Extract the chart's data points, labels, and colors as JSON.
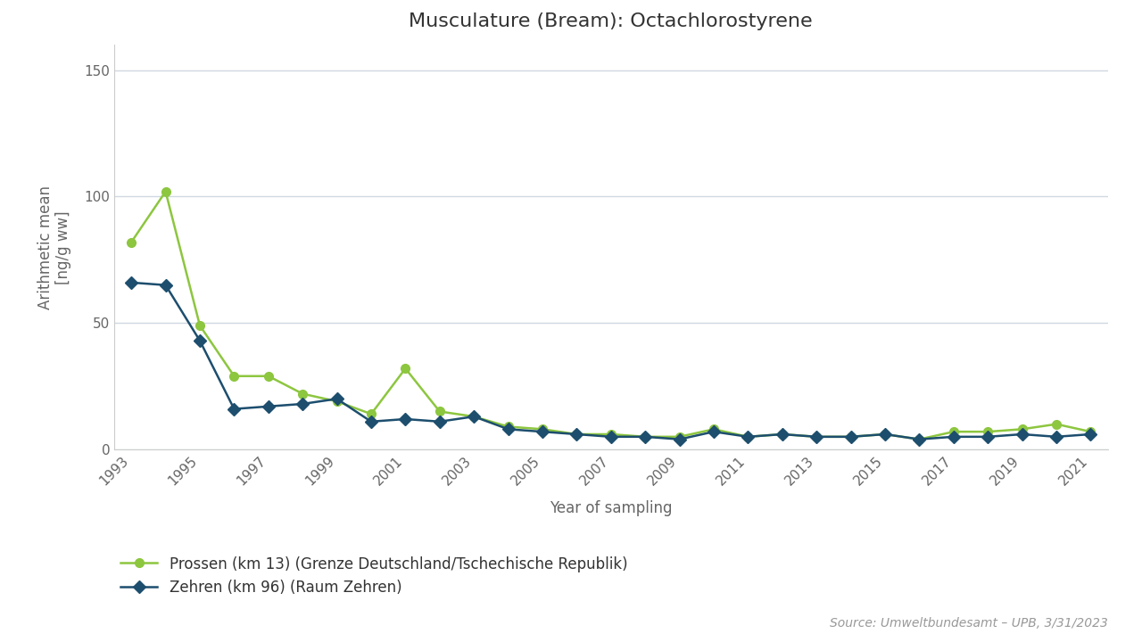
{
  "title": "Musculature (Bream): Octachlorostyrene",
  "xlabel": "Year of sampling",
  "ylabel": "Arithmetic mean\n[ng/g ww]",
  "source": "Source: Umweltbundesamt – UPB, 3/31/2023",
  "ylim": [
    0,
    160
  ],
  "yticks": [
    0,
    50,
    100,
    150
  ],
  "series": [
    {
      "label": "Prossen (km 13) (Grenze Deutschland/Tschechische Republik)",
      "color": "#8dc63f",
      "marker": "o",
      "years": [
        1993,
        1994,
        1995,
        1996,
        1997,
        1998,
        1999,
        2000,
        2001,
        2002,
        2003,
        2004,
        2005,
        2006,
        2007,
        2008,
        2009,
        2010,
        2011,
        2012,
        2013,
        2014,
        2015,
        2016,
        2017,
        2018,
        2019,
        2020,
        2021
      ],
      "values": [
        82,
        102,
        49,
        29,
        29,
        22,
        19,
        14,
        32,
        15,
        13,
        9,
        8,
        6,
        6,
        5,
        5,
        8,
        5,
        6,
        5,
        5,
        6,
        4,
        7,
        7,
        8,
        10,
        7
      ]
    },
    {
      "label": "Zehren (km 96) (Raum Zehren)",
      "color": "#1d4e6e",
      "marker": "D",
      "years": [
        1993,
        1994,
        1995,
        1996,
        1997,
        1998,
        1999,
        2000,
        2001,
        2002,
        2003,
        2004,
        2005,
        2006,
        2007,
        2008,
        2009,
        2010,
        2011,
        2012,
        2013,
        2014,
        2015,
        2016,
        2017,
        2018,
        2019,
        2020,
        2021
      ],
      "values": [
        66,
        65,
        43,
        16,
        17,
        18,
        20,
        11,
        12,
        11,
        13,
        8,
        7,
        6,
        5,
        5,
        4,
        7,
        5,
        6,
        5,
        5,
        6,
        4,
        5,
        5,
        6,
        5,
        6
      ]
    }
  ],
  "background_color": "#ffffff",
  "plot_bg_color": "#ffffff",
  "grid_color": "#d0d8e0",
  "title_fontsize": 16,
  "label_fontsize": 12,
  "tick_fontsize": 11,
  "legend_fontsize": 12,
  "source_fontsize": 10
}
